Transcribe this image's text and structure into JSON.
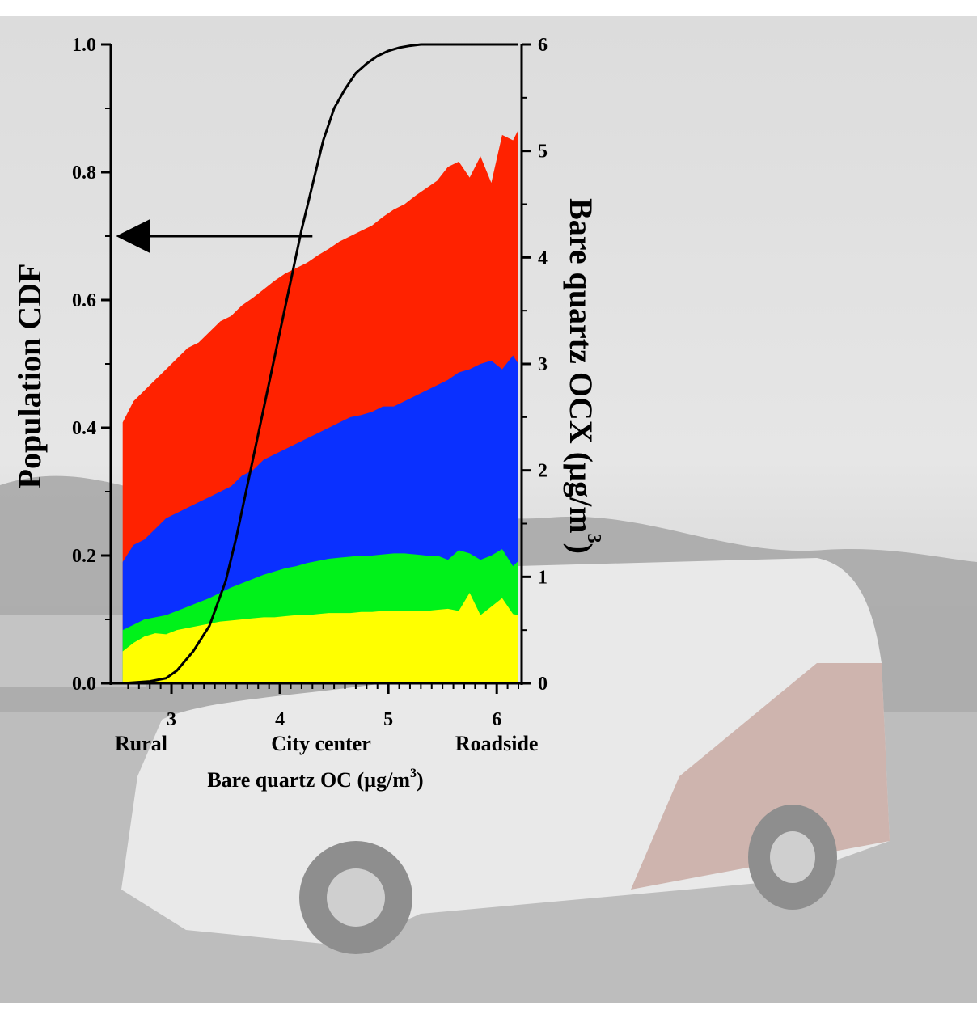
{
  "chart_data": {
    "type": "area",
    "xlabel": "Bare quartz OC (µg/m³)",
    "xlabel_main": "Bare quartz OC (µg/m",
    "xlabel_sup": "3",
    "xlabel_close": ")",
    "ylabel_left": "Population CDF",
    "ylabel_right_main": "Bare quartz OCX (µg/m",
    "ylabel_right_sup": "3",
    "ylabel_right_close": ")",
    "xlim": [
      2.5,
      6.2
    ],
    "ylim_left": [
      0.0,
      1.0
    ],
    "ylim_right": [
      0,
      6
    ],
    "x_ticks": [
      "3",
      "4",
      "5",
      "6"
    ],
    "x_tick_values": [
      3,
      4,
      5,
      6
    ],
    "y_left_ticks": [
      "0.0",
      "0.2",
      "0.4",
      "0.6",
      "0.8",
      "1.0"
    ],
    "y_left_tick_values": [
      0.0,
      0.2,
      0.4,
      0.6,
      0.8,
      1.0
    ],
    "y_right_ticks": [
      "0",
      "1",
      "2",
      "3",
      "4",
      "5",
      "6"
    ],
    "y_right_tick_values": [
      0,
      1,
      2,
      3,
      4,
      5,
      6
    ],
    "region_labels": [
      {
        "text": "Rural",
        "x": 2.72
      },
      {
        "text": "City center",
        "x": 4.38
      },
      {
        "text": "Roadside",
        "x": 6.0
      }
    ],
    "arrow": {
      "from_x": 4.3,
      "to_x": 2.55,
      "y_right": 4.2
    },
    "colors": {
      "red": "#ff2200",
      "blue": "#0a30ff",
      "green": "#00f21a",
      "yellow": "#ffff00",
      "cdf_line": "#000000"
    },
    "x": [
      2.55,
      2.65,
      2.75,
      2.85,
      2.95,
      3.05,
      3.15,
      3.25,
      3.35,
      3.45,
      3.55,
      3.65,
      3.75,
      3.85,
      3.95,
      4.05,
      4.15,
      4.25,
      4.35,
      4.45,
      4.55,
      4.65,
      4.75,
      4.85,
      4.95,
      5.05,
      5.15,
      5.25,
      5.35,
      5.45,
      5.55,
      5.65,
      5.75,
      5.85,
      5.95,
      6.05,
      6.15,
      6.2
    ],
    "series": [
      {
        "color": "yellow",
        "values": [
          0.3,
          0.38,
          0.44,
          0.47,
          0.46,
          0.5,
          0.52,
          0.54,
          0.56,
          0.58,
          0.59,
          0.6,
          0.61,
          0.62,
          0.62,
          0.63,
          0.64,
          0.64,
          0.65,
          0.66,
          0.66,
          0.66,
          0.67,
          0.67,
          0.68,
          0.68,
          0.68,
          0.68,
          0.68,
          0.69,
          0.7,
          0.68,
          0.85,
          0.64,
          0.72,
          0.8,
          0.65,
          0.64
        ]
      },
      {
        "color": "green",
        "values": [
          0.5,
          0.55,
          0.6,
          0.62,
          0.64,
          0.68,
          0.72,
          0.76,
          0.8,
          0.85,
          0.9,
          0.94,
          0.98,
          1.02,
          1.05,
          1.08,
          1.1,
          1.13,
          1.15,
          1.17,
          1.18,
          1.19,
          1.2,
          1.2,
          1.21,
          1.22,
          1.22,
          1.21,
          1.2,
          1.2,
          1.16,
          1.25,
          1.22,
          1.16,
          1.2,
          1.26,
          1.1,
          1.15
        ]
      },
      {
        "color": "blue",
        "values": [
          1.14,
          1.3,
          1.35,
          1.45,
          1.55,
          1.6,
          1.65,
          1.7,
          1.75,
          1.8,
          1.85,
          1.95,
          2.0,
          2.1,
          2.15,
          2.2,
          2.25,
          2.3,
          2.35,
          2.4,
          2.45,
          2.5,
          2.52,
          2.55,
          2.6,
          2.6,
          2.65,
          2.7,
          2.75,
          2.8,
          2.85,
          2.92,
          2.95,
          3.0,
          3.03,
          2.95,
          3.08,
          3.0
        ]
      },
      {
        "color": "red",
        "values": [
          2.45,
          2.65,
          2.75,
          2.85,
          2.95,
          3.05,
          3.15,
          3.2,
          3.3,
          3.4,
          3.45,
          3.55,
          3.62,
          3.7,
          3.78,
          3.85,
          3.9,
          3.95,
          4.02,
          4.08,
          4.15,
          4.2,
          4.25,
          4.3,
          4.38,
          4.45,
          4.5,
          4.58,
          4.65,
          4.72,
          4.85,
          4.9,
          4.75,
          4.95,
          4.7,
          5.15,
          5.1,
          5.2
        ]
      }
    ],
    "cdf_x": [
      2.55,
      2.8,
      2.95,
      3.05,
      3.2,
      3.35,
      3.5,
      3.6,
      3.7,
      3.8,
      3.9,
      4.0,
      4.1,
      4.2,
      4.3,
      4.4,
      4.5,
      4.6,
      4.7,
      4.8,
      4.9,
      5.0,
      5.1,
      5.2,
      5.3,
      5.5,
      6.2
    ],
    "cdf_y": [
      0.0,
      0.003,
      0.008,
      0.02,
      0.05,
      0.09,
      0.16,
      0.23,
      0.31,
      0.39,
      0.47,
      0.55,
      0.63,
      0.71,
      0.78,
      0.85,
      0.9,
      0.93,
      0.955,
      0.97,
      0.982,
      0.99,
      0.995,
      0.998,
      1.0,
      1.0,
      1.0
    ]
  }
}
